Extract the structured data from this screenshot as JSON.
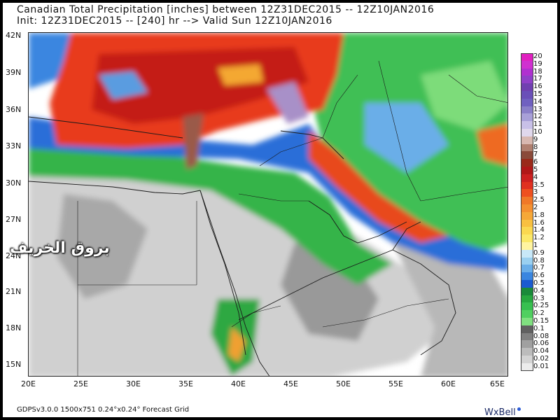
{
  "header": {
    "title_line1": "Canadian Total Precipitation [inches] between 12Z31DEC2015 -- 12Z10JAN2016",
    "title_line2": "Init: 12Z31DEC2015 -- [240] hr --> Valid Sun 12Z10JAN2016"
  },
  "axes": {
    "lat_labels": [
      "42N",
      "39N",
      "36N",
      "33N",
      "30N",
      "27N",
      "24N",
      "21N",
      "18N",
      "15N"
    ],
    "lon_labels": [
      "20E",
      "25E",
      "30E",
      "35E",
      "40E",
      "45E",
      "50E",
      "55E",
      "60E",
      "65E"
    ]
  },
  "legend": {
    "labels": [
      "20",
      "19",
      "18",
      "17",
      "16",
      "15",
      "14",
      "13",
      "12",
      "11",
      "10",
      "9",
      "8",
      "7",
      "6",
      "5",
      "4",
      "3.5",
      "3",
      "2.5",
      "2",
      "1.8",
      "1.6",
      "1.4",
      "1.2",
      "1",
      "0.9",
      "0.8",
      "0.7",
      "0.6",
      "0.5",
      "0.4",
      "0.3",
      "0.25",
      "0.2",
      "0.15",
      "0.1",
      "0.08",
      "0.06",
      "0.04",
      "0.02",
      "0.01"
    ],
    "colors": [
      "#e020c0",
      "#d030d0",
      "#b030d0",
      "#9040c8",
      "#7040b0",
      "#6a4fb8",
      "#7060c0",
      "#8a7fc8",
      "#a8a0d8",
      "#c8c0e8",
      "#e0d8ec",
      "#d8b8b0",
      "#b08070",
      "#8a4a3a",
      "#9a2a1a",
      "#b01818",
      "#cc2020",
      "#e03020",
      "#ee5020",
      "#f07828",
      "#f49030",
      "#f6a838",
      "#f8c040",
      "#fad850",
      "#fbe868",
      "#fff4a0",
      "#c8e8f8",
      "#9ad0f0",
      "#6aaee8",
      "#3a86e0",
      "#1a5ad0",
      "#1a8a3a",
      "#28a840",
      "#38c050",
      "#50d060",
      "#80e080",
      "#606060",
      "#808080",
      "#a0a0a0",
      "#bcbcbc",
      "#d4d4d4",
      "#ececec"
    ]
  },
  "footer": {
    "model_info": "GDPSv3.0.0  1500x751  0.24°x0.24° Forecast Grid",
    "brand": "WxBell"
  },
  "watermark": {
    "text": "بروق الخريف"
  }
}
